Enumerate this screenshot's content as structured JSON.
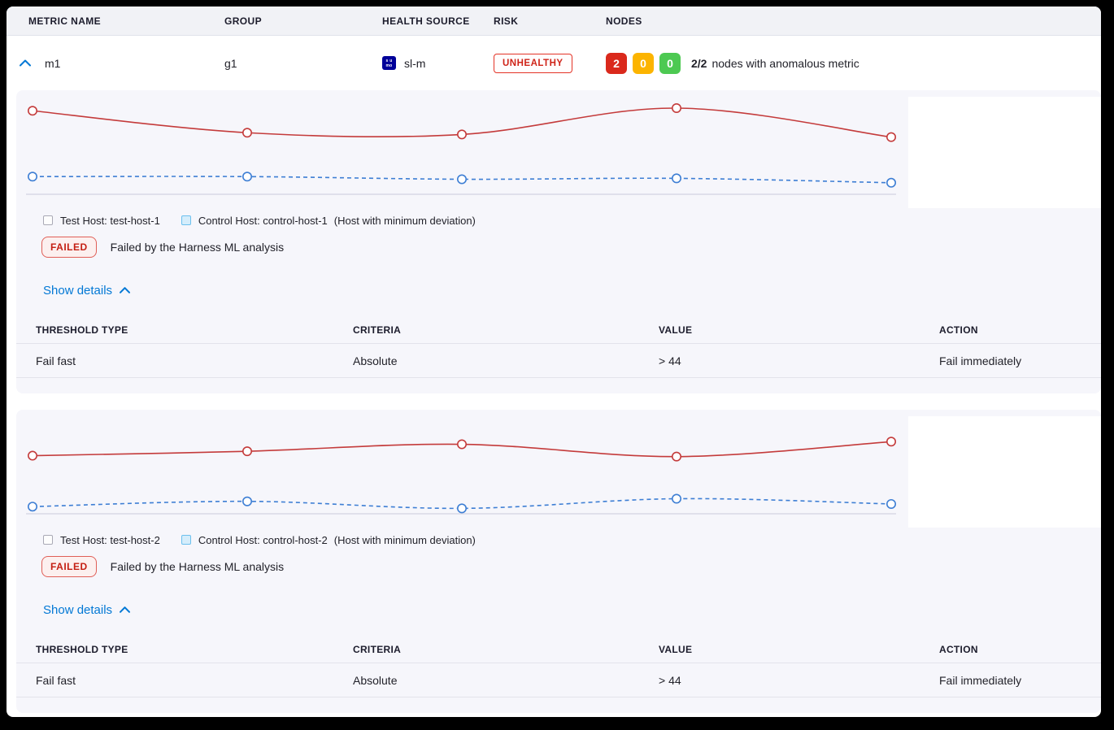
{
  "columns": {
    "metric_name": "METRIC NAME",
    "group": "GROUP",
    "health_source": "HEALTH SOURCE",
    "risk": "RISK",
    "nodes": "NODES"
  },
  "metric_row": {
    "name": "m1",
    "group": "g1",
    "health_source": {
      "label": "sl-m",
      "icon": "sumologic-icon",
      "icon_top": "s u",
      "icon_bottom": "mo",
      "icon_color": "#000099"
    },
    "risk_badge": "UNHEALTHY",
    "node_counts": [
      {
        "value": "2",
        "color": "#da291c"
      },
      {
        "value": "0",
        "color": "#fcb400"
      },
      {
        "value": "0",
        "color": "#4dc952"
      }
    ],
    "nodes_ratio": "2/2",
    "nodes_label": "nodes with anomalous metric"
  },
  "sections": [
    {
      "legend": {
        "test_label": "Test Host: test-host-1",
        "control_label": "Control Host: control-host-1",
        "note": "(Host with minimum deviation)"
      },
      "status": {
        "badge": "FAILED",
        "message": "Failed by the Harness ML analysis"
      },
      "details_toggle": "Show details",
      "table": {
        "headers": [
          "THRESHOLD TYPE",
          "CRITERIA",
          "VALUE",
          "ACTION"
        ],
        "rows": [
          [
            "Fail fast",
            "Absolute",
            "> 44",
            "Fail immediately"
          ]
        ]
      }
    },
    {
      "legend": {
        "test_label": "Test Host: test-host-2",
        "control_label": "Control Host: control-host-2",
        "note": "(Host with minimum deviation)"
      },
      "status": {
        "badge": "FAILED",
        "message": "Failed by the Harness ML analysis"
      },
      "details_toggle": "Show details",
      "table": {
        "headers": [
          "THRESHOLD TYPE",
          "CRITERIA",
          "VALUE",
          "ACTION"
        ],
        "rows": [
          [
            "Fail fast",
            "Absolute",
            "> 44",
            "Fail immediately"
          ]
        ]
      }
    }
  ],
  "chart_data": [
    {
      "type": "line",
      "x": [
        1,
        2,
        3,
        4,
        5
      ],
      "ylim": [
        0,
        100
      ],
      "axes_labeled": false,
      "grid": false,
      "legend_position": "bottom",
      "series": [
        {
          "name": "Test Host: test-host-1",
          "style": "solid",
          "color": "#c43b3b",
          "values": [
            97,
            72,
            70,
            100,
            67
          ]
        },
        {
          "name": "Control Host: control-host-1",
          "style": "dashed",
          "color": "#3d7ed4",
          "values": [
            22,
            22,
            19,
            20,
            15
          ]
        }
      ]
    },
    {
      "type": "line",
      "x": [
        1,
        2,
        3,
        4,
        5
      ],
      "ylim": [
        0,
        100
      ],
      "axes_labeled": false,
      "grid": false,
      "legend_position": "bottom",
      "series": [
        {
          "name": "Test Host: test-host-2",
          "style": "solid",
          "color": "#c43b3b",
          "values": [
            68,
            73,
            81,
            67,
            84
          ]
        },
        {
          "name": "Control Host: control-host-2",
          "style": "dashed",
          "color": "#3d7ed4",
          "values": [
            10,
            16,
            8,
            19,
            13
          ]
        }
      ]
    }
  ],
  "ui_colors": {
    "accent_blue": "#0278d5",
    "fail_red": "#cf2318",
    "axis_line": "#c9c9db"
  }
}
